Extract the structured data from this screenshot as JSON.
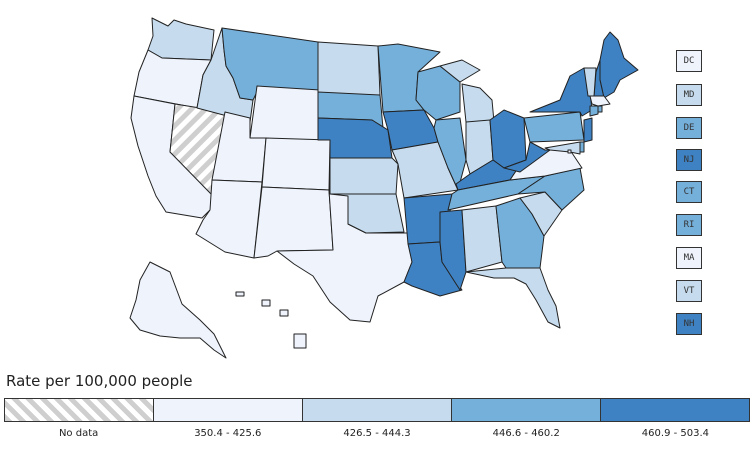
{
  "colors": {
    "no_data": "#d9d9d9",
    "c1": "#eef3fc",
    "c2": "#c6dcee",
    "c3": "#75b0db",
    "c4": "#3f82c3",
    "stroke": "#222222"
  },
  "states": {
    "WA": 2,
    "OR": 1,
    "CA": 1,
    "NV": 0,
    "ID": 2,
    "MT": 3,
    "WY": 1,
    "UT": 1,
    "AZ": 1,
    "CO": 1,
    "NM": 1,
    "TX": 1,
    "ND": 2,
    "SD": 3,
    "NE": 4,
    "KS": 2,
    "OK": 2,
    "MN": 3,
    "IA": 4,
    "MO": 2,
    "AR": 4,
    "LA": 4,
    "WI": 3,
    "IL": 3,
    "MI": 2,
    "IN": 2,
    "OH": 4,
    "KY": 4,
    "TN": 3,
    "MS": 4,
    "AL": 2,
    "GA": 3,
    "FL": 2,
    "SC": 2,
    "NC": 3,
    "VA": 1,
    "WV": 4,
    "PA": 3,
    "NY": 4,
    "ME": 4,
    "NH": 4,
    "VT": 2,
    "MA": 1,
    "CT": 3,
    "RI": 3,
    "NJ": 4,
    "DE": 3,
    "MD": 2,
    "DC": 1,
    "AK": 1,
    "HI": 1
  },
  "small_states": [
    {
      "abbr": "DC",
      "bin": 1
    },
    {
      "abbr": "MD",
      "bin": 2
    },
    {
      "abbr": "DE",
      "bin": 3
    },
    {
      "abbr": "NJ",
      "bin": 4
    },
    {
      "abbr": "CT",
      "bin": 3
    },
    {
      "abbr": "RI",
      "bin": 3
    },
    {
      "abbr": "MA",
      "bin": 1
    },
    {
      "abbr": "VT",
      "bin": 2
    },
    {
      "abbr": "NH",
      "bin": 4
    }
  ],
  "legend": {
    "title": "Rate per 100,000 people",
    "bins": [
      {
        "label": "No data",
        "color": "no_data"
      },
      {
        "label": "350.4 - 425.6",
        "color": "c1"
      },
      {
        "label": "426.5 - 444.3",
        "color": "c2"
      },
      {
        "label": "446.6 - 460.2",
        "color": "c3"
      },
      {
        "label": "460.9 - 503.4",
        "color": "c4"
      }
    ]
  }
}
